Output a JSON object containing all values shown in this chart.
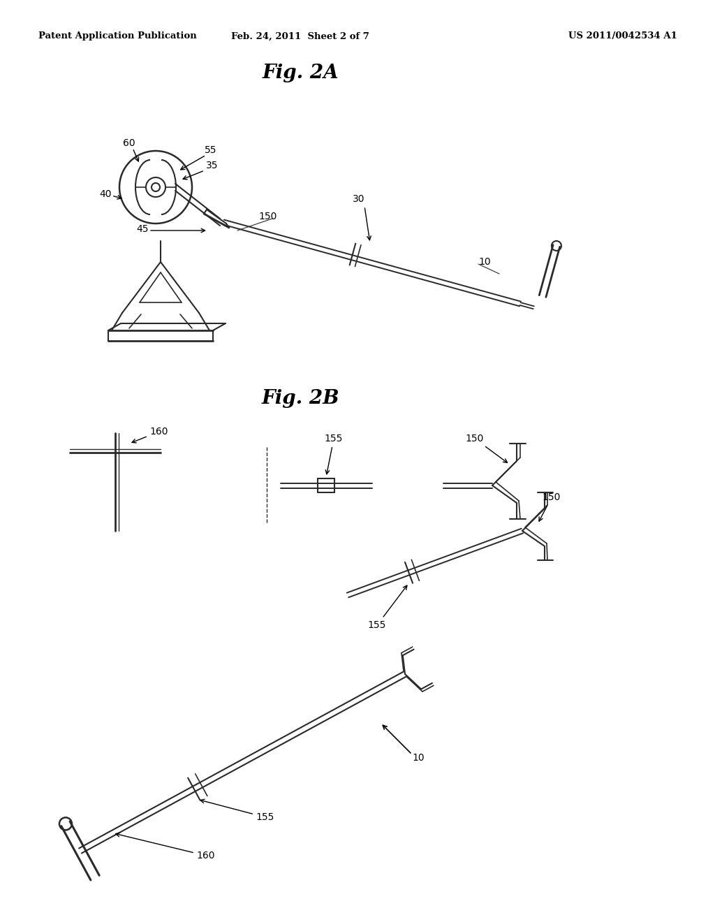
{
  "background_color": "#ffffff",
  "header_left": "Patent Application Publication",
  "header_center": "Feb. 24, 2011  Sheet 2 of 7",
  "header_right": "US 2011/0042534 A1",
  "fig2a_title": "Fig. 2A",
  "fig2b_title": "Fig. 2B",
  "line_color": "#2a2a2a",
  "text_color": "#000000",
  "label_fontsize": 10,
  "title_fontsize": 20,
  "header_fontsize": 9.5
}
